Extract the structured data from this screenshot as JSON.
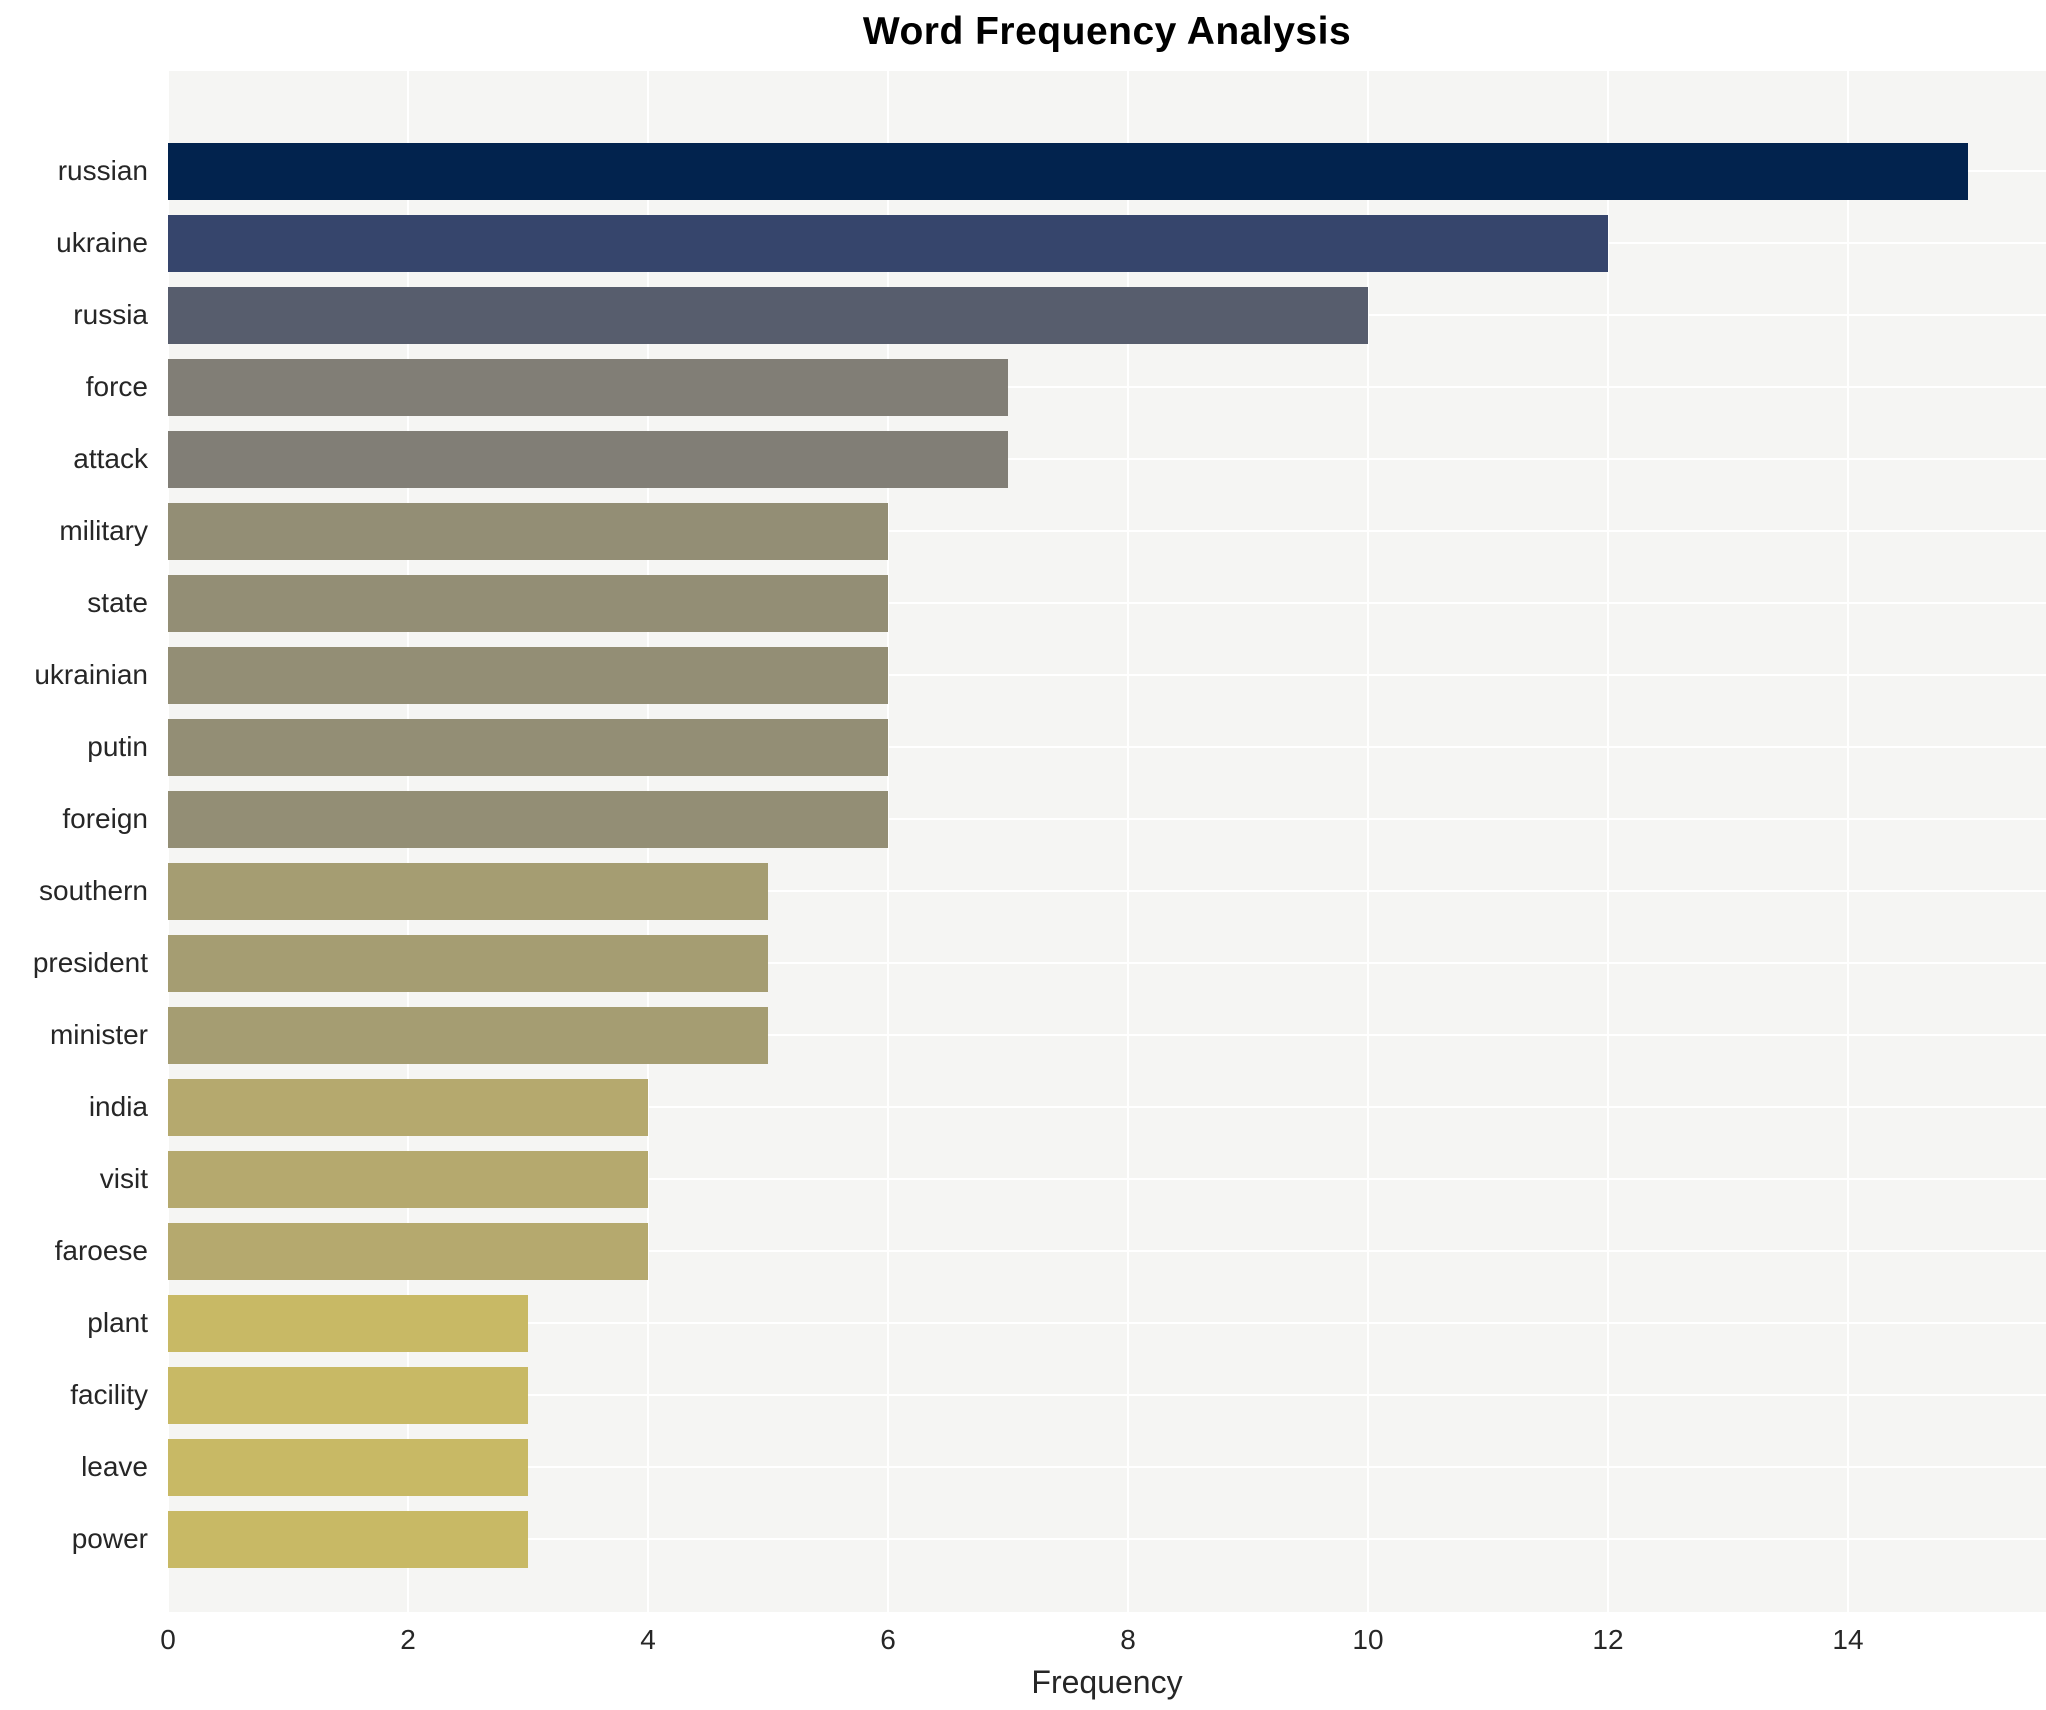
{
  "chart_data": {
    "type": "bar",
    "orientation": "horizontal",
    "title": "Word Frequency Analysis",
    "xlabel": "Frequency",
    "ylabel": "",
    "categories": [
      "russian",
      "ukraine",
      "russia",
      "force",
      "attack",
      "military",
      "state",
      "ukrainian",
      "putin",
      "foreign",
      "southern",
      "president",
      "minister",
      "india",
      "visit",
      "faroese",
      "plant",
      "facility",
      "leave",
      "power"
    ],
    "values": [
      15,
      12,
      10,
      7,
      7,
      6,
      6,
      6,
      6,
      6,
      5,
      5,
      5,
      4,
      4,
      4,
      3,
      3,
      3,
      3
    ],
    "bar_colors": [
      "#02234e",
      "#36456c",
      "#575d6d",
      "#817e76",
      "#817e76",
      "#938e75",
      "#938e75",
      "#938e75",
      "#938e75",
      "#938e75",
      "#a59d72",
      "#a59d72",
      "#a59d72",
      "#b5a96e",
      "#b5a96e",
      "#b5a96e",
      "#c8b965",
      "#c8b965",
      "#c8b965",
      "#c8b965"
    ],
    "xticks": [
      0,
      2,
      4,
      6,
      8,
      10,
      12,
      14
    ],
    "xlim": [
      0,
      15.65
    ],
    "grid": true,
    "legend_position": "none",
    "plot_bg_color": "#f5f5f3",
    "page_bg_color": "#ffffff",
    "grid_color": "#ffffff",
    "tick_text_color": "#262626",
    "title_color": "#000000"
  }
}
